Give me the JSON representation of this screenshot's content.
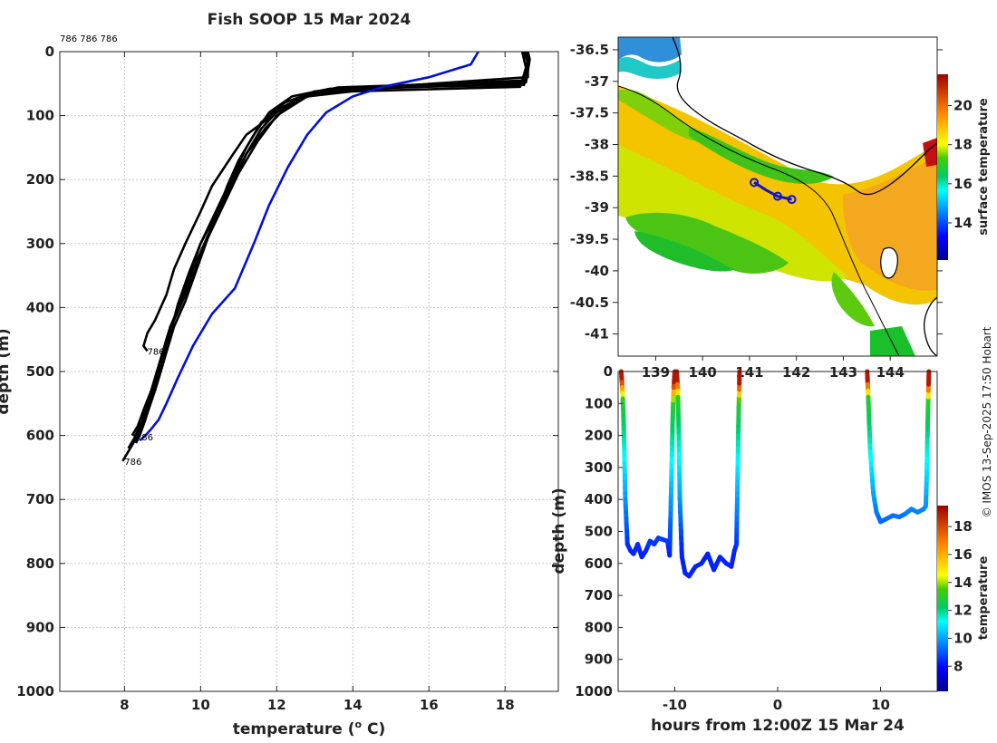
{
  "title": "Fish SOOP 15 Mar 2024",
  "credit": "© IMOS 13-Sep-2025 17:50 Hobart",
  "colors": {
    "black_profiles": "#000000",
    "blue_profile": "#0010d8",
    "grid": "#c8c8c8"
  },
  "chart_data": [
    {
      "id": "profile",
      "type": "line",
      "xlabel": "temperature (° C)",
      "ylabel": "depth (m)",
      "xlim": [
        6.3,
        19.4
      ],
      "ylim": [
        0,
        1000
      ],
      "y_inverted": true,
      "x_ticks": [
        "8",
        "10",
        "12",
        "14",
        "16",
        "18"
      ],
      "y_ticks": [
        "0",
        "100",
        "200",
        "300",
        "400",
        "500",
        "600",
        "700",
        "800",
        "900",
        "1000"
      ],
      "top_labels": "786 786 786",
      "end_labels": [
        {
          "text": "786",
          "x": 8.55,
          "y": 468
        },
        {
          "text": "786",
          "x": 8.25,
          "y": 602
        },
        {
          "text": "786",
          "x": 7.95,
          "y": 640
        }
      ],
      "series": [
        {
          "name": "786-1",
          "color": "#000000",
          "x": [
            18.5,
            18.6,
            18.55,
            18.5,
            14.8,
            13.2,
            12.6,
            12.0,
            11.2,
            10.8,
            10.3,
            10.0,
            9.6,
            9.3,
            9.1,
            8.8,
            8.6,
            8.5,
            8.6
          ],
          "y": [
            0,
            10,
            30,
            52,
            56,
            62,
            75,
            95,
            130,
            165,
            210,
            250,
            300,
            340,
            380,
            420,
            440,
            460,
            468
          ]
        },
        {
          "name": "786-2",
          "color": "#000000",
          "x": [
            18.55,
            18.6,
            18.5,
            15.0,
            13.4,
            12.4,
            11.8,
            11.4,
            11.0,
            10.7,
            10.4,
            10.1,
            9.8,
            9.5,
            9.2,
            9.0,
            8.8,
            8.6,
            8.45,
            8.3,
            8.25
          ],
          "y": [
            0,
            20,
            45,
            54,
            58,
            70,
            95,
            130,
            170,
            210,
            260,
            300,
            340,
            390,
            430,
            470,
            510,
            550,
            580,
            598,
            602
          ]
        },
        {
          "name": "786-3",
          "color": "#000000",
          "x": [
            18.5,
            18.6,
            18.6,
            14.6,
            13.0,
            12.2,
            11.6,
            11.2,
            10.8,
            10.4,
            10.0,
            9.7,
            9.4,
            9.1,
            8.9,
            8.7,
            8.5,
            8.3,
            8.1,
            7.95
          ],
          "y": [
            0,
            15,
            40,
            56,
            62,
            80,
            110,
            150,
            200,
            250,
            300,
            350,
            400,
            450,
            500,
            540,
            580,
            605,
            625,
            640
          ]
        },
        {
          "name": "786-4",
          "color": "#000000",
          "x": [
            18.45,
            18.55,
            18.4,
            14.0,
            12.8,
            12.0,
            11.5,
            11.0,
            10.6,
            10.2,
            9.9,
            9.6,
            9.3,
            9.1,
            8.9,
            8.7,
            8.55,
            8.4,
            8.3
          ],
          "y": [
            0,
            25,
            55,
            62,
            70,
            100,
            140,
            190,
            240,
            290,
            340,
            390,
            430,
            470,
            510,
            545,
            575,
            600,
            612
          ]
        },
        {
          "name": "786-5",
          "color": "#000000",
          "x": [
            18.6,
            18.65,
            18.55,
            15.6,
            13.6,
            12.8,
            12.2,
            11.7,
            11.2,
            10.8,
            10.4,
            10.0,
            9.7,
            9.4,
            9.2,
            9.0,
            8.8,
            8.6,
            8.4,
            8.2,
            8.1
          ],
          "y": [
            0,
            12,
            48,
            52,
            56,
            68,
            90,
            120,
            160,
            205,
            255,
            300,
            345,
            395,
            440,
            490,
            530,
            565,
            590,
            610,
            620
          ]
        },
        {
          "name": "786-6",
          "color": "#000000",
          "x": [
            18.5,
            18.6,
            18.45,
            14.3,
            12.9,
            12.1,
            11.6,
            11.2,
            10.9,
            10.5,
            10.2,
            9.9,
            9.6,
            9.3,
            9.1,
            8.9,
            8.7,
            8.5,
            8.35,
            8.2
          ],
          "y": [
            0,
            18,
            50,
            58,
            66,
            88,
            120,
            160,
            200,
            245,
            290,
            335,
            380,
            420,
            455,
            495,
            530,
            560,
            585,
            600
          ]
        },
        {
          "name": "blue",
          "color": "#0010d8",
          "x": [
            17.3,
            17.1,
            16.0,
            14.8,
            14.0,
            13.3,
            12.8,
            12.3,
            11.8,
            11.4,
            10.9,
            10.3,
            9.8,
            9.4,
            9.1,
            8.9,
            8.7,
            8.55,
            8.4
          ],
          "y": [
            0,
            20,
            40,
            55,
            70,
            95,
            130,
            180,
            240,
            300,
            370,
            410,
            460,
            510,
            550,
            575,
            590,
            600,
            608
          ]
        }
      ]
    },
    {
      "id": "sst_map",
      "type": "heatmap",
      "ylabel_ticks": [
        "-36.5",
        "-37",
        "-37.5",
        "-38",
        "-38.5",
        "-39",
        "-39.5",
        "-40",
        "-40.5",
        "-41"
      ],
      "y_tick_values": [
        -36.5,
        -37,
        -37.5,
        -38,
        -38.5,
        -39,
        -39.5,
        -40,
        -40.5,
        -41
      ],
      "x_ticks": [
        "139",
        "140",
        "141",
        "142",
        "143",
        "144"
      ],
      "x_tick_values": [
        139,
        140,
        141,
        142,
        143,
        144
      ],
      "lon_range": [
        138.2,
        145.0
      ],
      "lat_range": [
        -41.35,
        -36.3
      ],
      "colorbar_label": "surface temperature",
      "colorbar_ticks": [
        "14",
        "16",
        "18",
        "20"
      ],
      "colorbar_range": [
        12.1,
        21.6
      ],
      "track": [
        {
          "lon": 141.1,
          "lat": -38.6
        },
        {
          "lon": 141.35,
          "lat": -38.72
        },
        {
          "lon": 141.6,
          "lat": -38.82
        },
        {
          "lon": 141.9,
          "lat": -38.87
        }
      ]
    },
    {
      "id": "depth_time",
      "type": "scatter",
      "xlabel": "hours from 12:00Z 15 Mar 24",
      "ylabel": "depth (m)",
      "xlim": [
        -15.5,
        15.5
      ],
      "ylim": [
        0,
        1000
      ],
      "x_ticks": [
        "-10",
        "0",
        "10"
      ],
      "y_ticks": [
        "0",
        "100",
        "200",
        "300",
        "400",
        "500",
        "600",
        "700",
        "800",
        "900",
        "1000"
      ],
      "colorbar_label": "temperature",
      "colorbar_ticks": [
        "8",
        "10",
        "12",
        "14",
        "16",
        "18"
      ],
      "colorbar_range": [
        6.2,
        19.5
      ],
      "tracks": [
        {
          "t": [
            -15.2,
            -15.1,
            -15.0,
            -14.9,
            -14.8,
            -14.6,
            -14.3,
            -14.0,
            -13.6,
            -13.2,
            -12.8,
            -12.4,
            -12.0,
            -11.6,
            -11.2,
            -10.7,
            -10.5,
            -10.4,
            -10.3,
            -10.2,
            -10.1,
            -10.0
          ],
          "d": [
            0,
            50,
            120,
            250,
            400,
            540,
            560,
            570,
            540,
            580,
            560,
            530,
            540,
            520,
            525,
            530,
            575,
            450,
            300,
            150,
            50,
            0
          ]
        },
        {
          "t": [
            -9.8,
            -9.7,
            -9.6,
            -9.5,
            -9.3,
            -9.0,
            -8.6,
            -8.0,
            -7.4,
            -6.8,
            -6.2,
            -5.6,
            -5.0,
            -4.5,
            -4.2,
            -4.0,
            -3.9,
            -3.8,
            -3.7
          ],
          "d": [
            0,
            60,
            200,
            400,
            580,
            630,
            640,
            610,
            600,
            570,
            620,
            580,
            600,
            610,
            560,
            540,
            350,
            150,
            0
          ]
        },
        {
          "t": [
            8.7,
            8.8,
            9.0,
            9.3,
            9.6,
            10.0,
            10.6,
            11.2,
            11.8,
            12.4,
            13.0,
            13.6,
            14.2,
            14.4,
            14.5,
            14.6,
            14.7
          ],
          "d": [
            0,
            80,
            250,
            380,
            440,
            470,
            460,
            450,
            455,
            445,
            430,
            440,
            430,
            420,
            300,
            120,
            0
          ]
        }
      ]
    }
  ]
}
